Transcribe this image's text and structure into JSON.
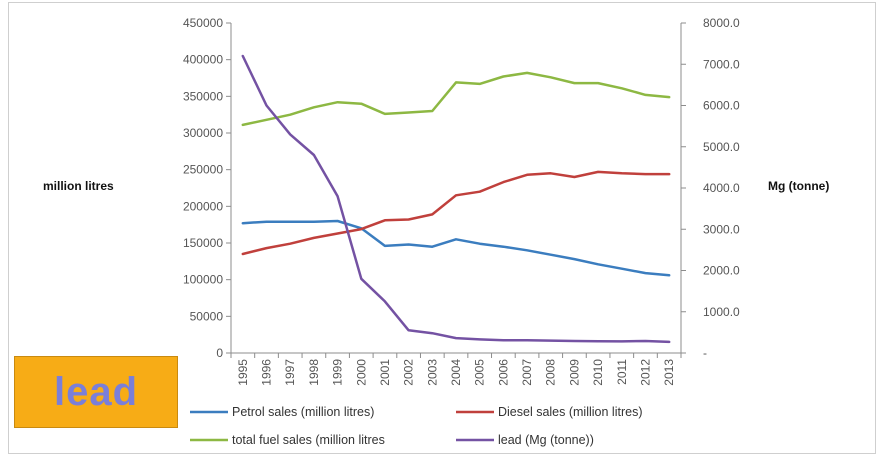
{
  "chart_data": {
    "type": "line",
    "title": "",
    "ylabel": "million litres",
    "y2label": "Mg (tonne)",
    "ylim": [
      0,
      450000
    ],
    "y2lim": [
      0,
      8000
    ],
    "yticks": [
      "0",
      "50000",
      "100000",
      "150000",
      "200000",
      "250000",
      "300000",
      "350000",
      "400000",
      "450000"
    ],
    "y2ticks": [
      "-",
      "1000.0",
      "2000.0",
      "3000.0",
      "4000.0",
      "5000.0",
      "6000.0",
      "7000.0",
      "8000.0"
    ],
    "x": [
      "1995",
      "1996",
      "1997",
      "1998",
      "1999",
      "2000",
      "2001",
      "2002",
      "2003",
      "2004",
      "2005",
      "2006",
      "2007",
      "2008",
      "2009",
      "2010",
      "2011",
      "2012",
      "2013"
    ],
    "grid": false,
    "legend_position": "bottom",
    "series": [
      {
        "name": "Petrol sales (million litres)",
        "axis": "left",
        "color": "#3b7dbf",
        "values": [
          177000,
          179000,
          179000,
          179000,
          180000,
          170000,
          146000,
          148000,
          145000,
          155000,
          149000,
          145000,
          140000,
          134000,
          128000,
          121000,
          115000,
          109000,
          106000
        ]
      },
      {
        "name": "Diesel sales (million litres)",
        "axis": "left",
        "color": "#c0403c",
        "values": [
          135000,
          143000,
          149000,
          157000,
          163000,
          169000,
          181000,
          182000,
          189000,
          215000,
          220000,
          233000,
          243000,
          245000,
          240000,
          247000,
          245000,
          244000,
          244000
        ]
      },
      {
        "name": "total fuel sales (million litres",
        "axis": "left",
        "color": "#8db843",
        "values": [
          311000,
          318000,
          325000,
          335000,
          342000,
          340000,
          326000,
          328000,
          330000,
          369000,
          367000,
          377000,
          382000,
          376000,
          368000,
          368000,
          361000,
          352000,
          349000
        ]
      },
      {
        "name": "lead (Mg (tonne))",
        "axis": "right",
        "color": "#7452a3",
        "values": [
          7200,
          6000,
          5300,
          4800,
          3800,
          1800,
          1250,
          550,
          480,
          360,
          330,
          310,
          310,
          300,
          290,
          285,
          280,
          290,
          270
        ]
      }
    ]
  },
  "badge": {
    "label": "lead"
  }
}
